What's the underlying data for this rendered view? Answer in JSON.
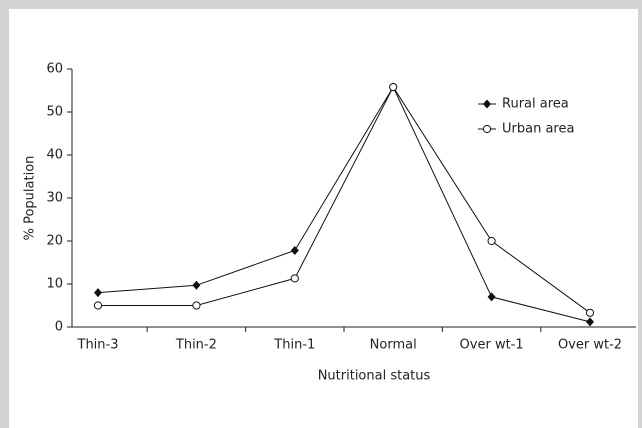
{
  "chart_data": {
    "type": "line",
    "categories": [
      "Thin-3",
      "Thin-2",
      "Thin-1",
      "Normal",
      "Over wt-1",
      "Over wt-2"
    ],
    "series": [
      {
        "name": "Rural area",
        "color": "#111111",
        "marker": "diamond",
        "values": [
          8,
          9.7,
          17.8,
          55.8,
          7,
          1.2
        ]
      },
      {
        "name": "Urban area",
        "color": "#111111",
        "marker": "open-circle",
        "values": [
          5,
          5,
          11.3,
          55.8,
          20,
          3.3
        ]
      }
    ],
    "xlabel": "Nutritional status",
    "ylabel": "% Population",
    "ylim": [
      0,
      60
    ],
    "yticks": [
      0,
      10,
      20,
      30,
      40,
      50,
      60
    ],
    "legend": "upper right"
  }
}
